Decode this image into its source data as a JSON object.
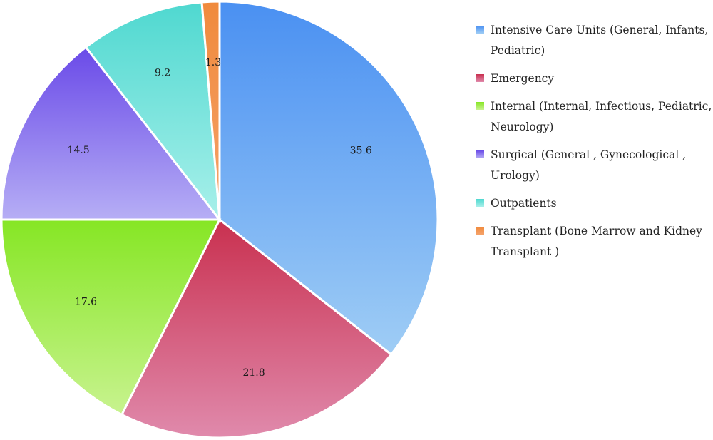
{
  "chart_data": {
    "type": "pie",
    "title": "",
    "start_angle_deg": 90,
    "direction": "clockwise",
    "legend_position": "right",
    "slices": [
      {
        "label": "Intensive Care Units (General, Infants, Pediatric)",
        "value": 35.6,
        "value_label": "35.6",
        "color_top": "#4a90f2",
        "color_bottom": "#9fcdf5"
      },
      {
        "label": "Emergency",
        "value": 21.8,
        "value_label": "21.8",
        "color_top": "#c9304f",
        "color_bottom": "#e08aac"
      },
      {
        "label": "Internal (Internal, Infectious, Pediatric, Neurology)",
        "value": 17.6,
        "value_label": "17.6",
        "color_top": "#86e624",
        "color_bottom": "#c8f38f"
      },
      {
        "label": "Surgical  (General , Gynecological , Urology)",
        "value": 14.5,
        "value_label": "14.5",
        "color_top": "#6a4ae8",
        "color_bottom": "#b6aef5"
      },
      {
        "label": "Outpatients",
        "value": 9.2,
        "value_label": "9.2",
        "color_top": "#4fd8d0",
        "color_bottom": "#a8f0ea"
      },
      {
        "label": "Transplant  (Bone Marrow and Kidney Transplant )",
        "value": 1.3,
        "value_label": "1.3",
        "color_top": "#f08a3c",
        "color_bottom": "#f5a26a"
      }
    ]
  }
}
